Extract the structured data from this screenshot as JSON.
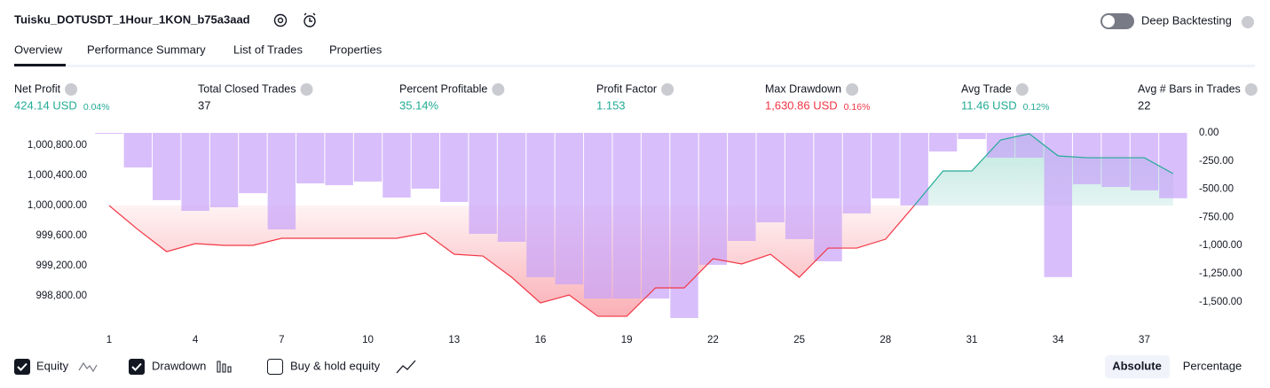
{
  "header": {
    "title": "Tuisku_DOTUSDT_1Hour_1KON_b75a3aad",
    "toggle_label": "Deep Backtesting"
  },
  "tabs": [
    "Overview",
    "Performance Summary",
    "List of Trades",
    "Properties"
  ],
  "metrics": [
    {
      "label": "Net Profit",
      "value": "424.14 USD",
      "pct": "0.04%"
    },
    {
      "label": "Total Closed Trades",
      "value": "37"
    },
    {
      "label": "Percent Profitable",
      "value": "35.14%"
    },
    {
      "label": "Profit Factor",
      "value": "1.153"
    },
    {
      "label": "Max Drawdown",
      "value": "1,630.86 USD",
      "pct": "0.16%"
    },
    {
      "label": "Avg Trade",
      "value": "11.46 USD",
      "pct": "0.12%"
    },
    {
      "label": "Avg # Bars in Trades",
      "value": "22"
    }
  ],
  "chart_data": {
    "type": "combo",
    "x": [
      1,
      2,
      3,
      4,
      5,
      6,
      7,
      8,
      9,
      10,
      11,
      12,
      13,
      14,
      15,
      16,
      17,
      18,
      19,
      20,
      21,
      22,
      23,
      24,
      25,
      26,
      27,
      28,
      29,
      30,
      31,
      32,
      33,
      34,
      35,
      36,
      37,
      38
    ],
    "series": [
      {
        "name": "Equity",
        "color": "#f23645",
        "color_up": "#22ab94",
        "values": [
          1000000,
          999682,
          999388,
          999494,
          999471,
          999471,
          999565,
          999565,
          999565,
          999565,
          999565,
          999635,
          999353,
          999329,
          999047,
          998706,
          998812,
          998529,
          998529,
          998906,
          998906,
          999294,
          999224,
          999353,
          999047,
          999435,
          999435,
          999553,
          1000000,
          1000459,
          1000459,
          1000871,
          1000953,
          1000659,
          1000635,
          1000635,
          1000635,
          1000424
        ]
      },
      {
        "name": "Drawdown",
        "color": "#c8a2fa",
        "axis": "y2",
        "values": [
          0,
          -307,
          -597,
          -692,
          -660,
          -535,
          -857,
          -448,
          -464,
          -432,
          -574,
          -495,
          -613,
          -896,
          -967,
          -1281,
          -1344,
          -1470,
          -1470,
          -1470,
          -1643,
          -1171,
          -959,
          -794,
          -943,
          -1140,
          -715,
          -581,
          -644,
          -165,
          -55,
          -220,
          -220,
          -1280,
          -455,
          -480,
          -510,
          -580
        ]
      }
    ],
    "extra_legend": "Buy & hold equity",
    "xlim": [
      0.54,
      38.56
    ],
    "xticks": [
      1,
      4,
      7,
      10,
      13,
      16,
      19,
      22,
      25,
      28,
      31,
      34,
      37
    ],
    "ylim": [
      998506,
      1000965
    ],
    "yticks": [
      {
        "value": 998800,
        "label": "998,800.00"
      },
      {
        "value": 999200,
        "label": "999,200.00"
      },
      {
        "value": 999600,
        "label": "999,600.00"
      },
      {
        "value": 1000000,
        "label": "1,000,000.00"
      },
      {
        "value": 1000400,
        "label": "1,000,400.00"
      },
      {
        "value": 1000800,
        "label": "1,000,800.00"
      }
    ],
    "y2lim": [
      -1643,
      0
    ],
    "y2ticks": [
      {
        "value": 0,
        "label": "0.00"
      },
      {
        "value": -250,
        "label": "-250.00"
      },
      {
        "value": -500,
        "label": "-500.00"
      },
      {
        "value": -750,
        "label": "-750.00"
      },
      {
        "value": -1000,
        "label": "-1,000.00"
      },
      {
        "value": -1250,
        "label": "-1,250.00"
      },
      {
        "value": -1500,
        "label": "-1,500.00"
      }
    ]
  },
  "buttons": [
    "Absolute",
    "Percentage"
  ]
}
